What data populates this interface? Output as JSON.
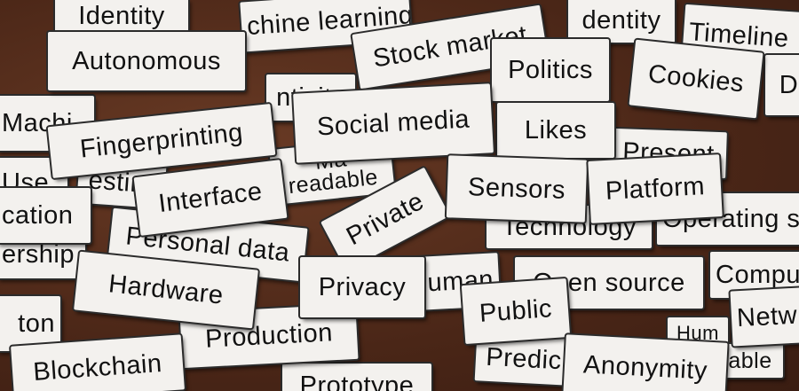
{
  "scene": "Paper word magnets with technology terms scattered on a wooden table",
  "words": {
    "identity_tl": "Identity",
    "chine_learning": "chine learning",
    "stock_market": "Stock market",
    "identity_tr": "dentity",
    "timeline": "Timeline",
    "autonomous": "Autonomous",
    "politics": "Politics",
    "cookies": "Cookies",
    "di": "Di",
    "machi": "Machi",
    "nticity": "nticity",
    "fingerprinting": "Fingerprinting",
    "social_media": "Social media",
    "likes": "Likes",
    "present": "Present",
    "use": "Use",
    "esting": "esting",
    "ma": "Ma",
    "readable": "readable",
    "interface": "Interface",
    "sensors": "Sensors",
    "platform": "Platform",
    "cation": "cation",
    "private": "Private",
    "technology": "Technology",
    "operating": "Operating sy",
    "ership": "ership",
    "personal_data": "Personal data",
    "hardware": "Hardware",
    "privacy": "Privacy",
    "uman": "uman",
    "open_source": "Open source",
    "compu": "Compu",
    "public": "Public",
    "netw": "Netw",
    "ton": "ton",
    "production": "Production",
    "hum": "Hum",
    "able": "able",
    "blockchain": "Blockchain",
    "prototype": "Prototype",
    "predic": "Predic",
    "anonymity": "Anonymity"
  }
}
